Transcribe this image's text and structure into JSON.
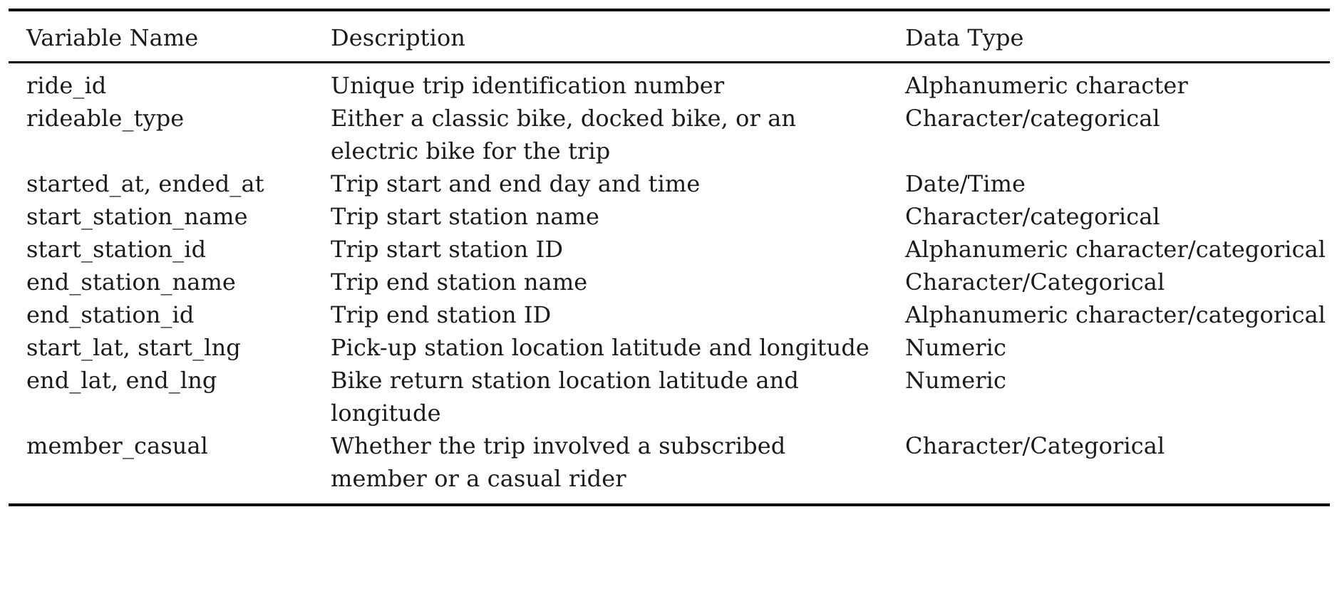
{
  "table": {
    "headers": [
      "Variable Name",
      "Description",
      "Data Type"
    ],
    "rows": [
      [
        "ride_id",
        "Unique trip identification number",
        "Alphanumeric character"
      ],
      [
        "rideable_type",
        "Either a classic bike, docked bike, or an electric bike for the trip",
        "Character/categorical"
      ],
      [
        "started_at, ended_at",
        "Trip start and end day and time",
        "Date/Time"
      ],
      [
        "start_station_name",
        "Trip start station name",
        "Character/categorical"
      ],
      [
        "start_station_id",
        "Trip start station ID",
        "Alphanumeric character/categorical"
      ],
      [
        "end_station_name",
        "Trip end station name",
        "Character/Categorical"
      ],
      [
        "end_station_id",
        "Trip end station ID",
        "Alphanumeric character/categorical"
      ],
      [
        "start_lat, start_lng",
        "Pick-up station location latitude and longitude",
        "Numeric"
      ],
      [
        "end_lat, end_lng",
        "Bike return station location latitude and longitude",
        "Numeric"
      ],
      [
        "member_casual",
        "Whether the trip involved a subscribed member or a casual rider",
        "Character/Categorical"
      ]
    ]
  }
}
